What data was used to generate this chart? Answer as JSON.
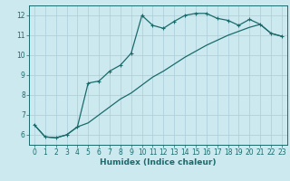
{
  "xlabel": "Humidex (Indice chaleur)",
  "ylabel": "",
  "bg_color": "#cce9f0",
  "grid_color": "#aacdd8",
  "line_color": "#1a6b6b",
  "xlim": [
    -0.5,
    23.5
  ],
  "ylim": [
    5.5,
    12.5
  ],
  "xticks": [
    0,
    1,
    2,
    3,
    4,
    5,
    6,
    7,
    8,
    9,
    10,
    11,
    12,
    13,
    14,
    15,
    16,
    17,
    18,
    19,
    20,
    21,
    22,
    23
  ],
  "yticks": [
    6,
    7,
    8,
    9,
    10,
    11,
    12
  ],
  "curve1_x": [
    0,
    1,
    2,
    3,
    4,
    5,
    6,
    7,
    8,
    9,
    10,
    11,
    12,
    13,
    14,
    15,
    16,
    17,
    18,
    19,
    20,
    21,
    22,
    23
  ],
  "curve1_y": [
    6.5,
    5.9,
    5.85,
    6.0,
    6.4,
    8.6,
    8.7,
    9.2,
    9.5,
    10.1,
    12.0,
    11.5,
    11.35,
    11.7,
    12.0,
    12.1,
    12.1,
    11.85,
    11.75,
    11.5,
    11.8,
    11.55,
    11.1,
    10.95
  ],
  "curve2_x": [
    0,
    1,
    2,
    3,
    4,
    5,
    6,
    7,
    8,
    9,
    10,
    11,
    12,
    13,
    14,
    15,
    16,
    17,
    18,
    19,
    20,
    21,
    22,
    23
  ],
  "curve2_y": [
    6.5,
    5.9,
    5.85,
    6.0,
    6.4,
    6.6,
    7.0,
    7.4,
    7.8,
    8.1,
    8.5,
    8.9,
    9.2,
    9.55,
    9.9,
    10.2,
    10.5,
    10.75,
    11.0,
    11.2,
    11.4,
    11.55,
    11.1,
    10.95
  ],
  "tick_fontsize": 5.5,
  "xlabel_fontsize": 6.5
}
